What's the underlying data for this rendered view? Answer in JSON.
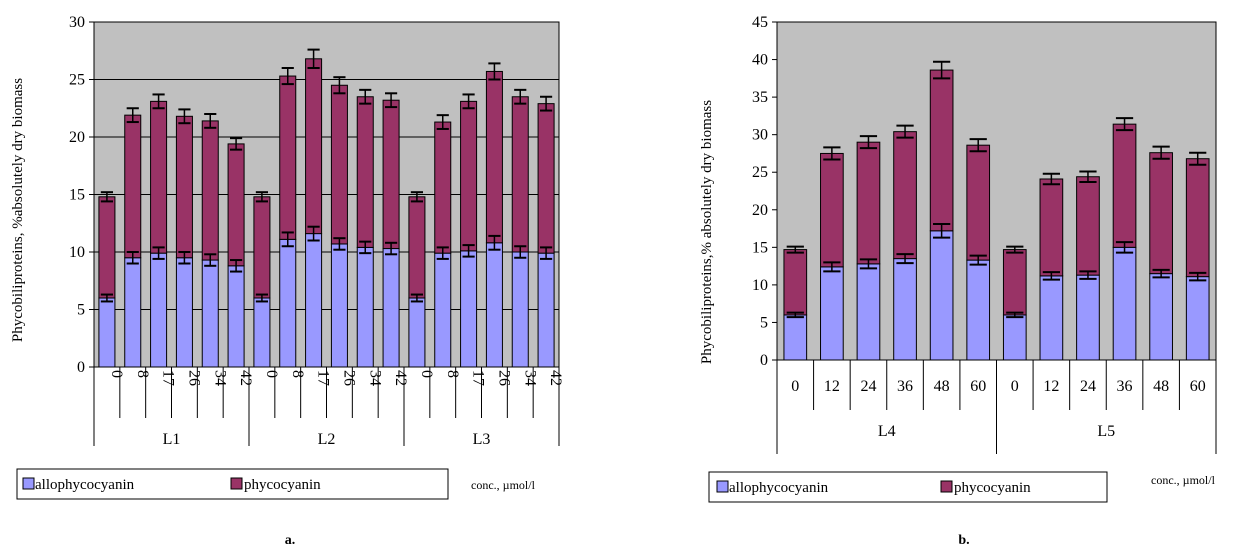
{
  "colors": {
    "plot_bg": "#c0c0c0",
    "allophycocyanin": "#9999ff",
    "phycocyanin": "#993366",
    "stroke": "#000000"
  },
  "chart_data": [
    {
      "id": "a",
      "type": "bar",
      "stacked": true,
      "panel_label": "a.",
      "ylabel": "Phycobiliproteins, %absolutely dry biomass",
      "ylim": [
        0,
        30
      ],
      "ytick_step": 5,
      "grid": true,
      "legend": "bottom",
      "note": "conc., µmol/l",
      "groups": [
        {
          "label": "L1",
          "categories": [
            "0",
            "8",
            "17",
            "26",
            "34",
            "42"
          ]
        },
        {
          "label": "L2",
          "categories": [
            "0",
            "8",
            "17",
            "26",
            "34",
            "42"
          ]
        },
        {
          "label": "L3",
          "categories": [
            "0",
            "8",
            "17",
            "26",
            "34",
            "42"
          ]
        }
      ],
      "series": [
        {
          "name": "allophycocyanin",
          "values": [
            6.0,
            9.5,
            9.9,
            9.5,
            9.3,
            8.8,
            6.0,
            11.1,
            11.6,
            10.7,
            10.4,
            10.3,
            6.0,
            9.9,
            10.1,
            10.8,
            10.0,
            9.9
          ],
          "err": [
            0.3,
            0.5,
            0.5,
            0.5,
            0.5,
            0.5,
            0.3,
            0.6,
            0.6,
            0.5,
            0.5,
            0.5,
            0.3,
            0.5,
            0.5,
            0.6,
            0.5,
            0.5
          ]
        },
        {
          "name": "phycocyanin",
          "values": [
            8.8,
            12.4,
            13.2,
            12.3,
            12.1,
            10.6,
            8.8,
            14.2,
            15.2,
            13.8,
            13.1,
            12.9,
            8.8,
            11.4,
            13.0,
            14.9,
            13.5,
            13.0
          ],
          "err": [
            0.4,
            0.6,
            0.6,
            0.6,
            0.6,
            0.5,
            0.4,
            0.7,
            0.8,
            0.7,
            0.6,
            0.6,
            0.4,
            0.6,
            0.6,
            0.7,
            0.6,
            0.6
          ]
        }
      ]
    },
    {
      "id": "b",
      "type": "bar",
      "stacked": true,
      "panel_label": "b.",
      "ylabel": "Phycobiliproteins,% absolutely dry biomass",
      "ylim": [
        0,
        45
      ],
      "ytick_step": 5,
      "grid": false,
      "legend": "bottom",
      "note": "conc., µmol/l",
      "groups": [
        {
          "label": "L4",
          "categories": [
            "0",
            "12",
            "24",
            "36",
            "48",
            "60"
          ]
        },
        {
          "label": "L5",
          "categories": [
            "0",
            "12",
            "24",
            "36",
            "48",
            "60"
          ]
        }
      ],
      "series": [
        {
          "name": "allophycocyanin",
          "values": [
            6.0,
            12.4,
            12.8,
            13.5,
            17.2,
            13.3,
            6.0,
            11.2,
            11.3,
            15.0,
            11.5,
            11.1
          ],
          "err": [
            0.3,
            0.6,
            0.6,
            0.6,
            0.9,
            0.6,
            0.3,
            0.5,
            0.5,
            0.7,
            0.5,
            0.5
          ]
        },
        {
          "name": "phycocyanin",
          "values": [
            8.7,
            15.1,
            16.2,
            16.9,
            21.4,
            15.3,
            8.7,
            12.9,
            13.1,
            16.4,
            16.1,
            15.7
          ],
          "err": [
            0.4,
            0.8,
            0.8,
            0.8,
            1.1,
            0.8,
            0.4,
            0.7,
            0.7,
            0.8,
            0.8,
            0.8
          ]
        }
      ]
    }
  ]
}
